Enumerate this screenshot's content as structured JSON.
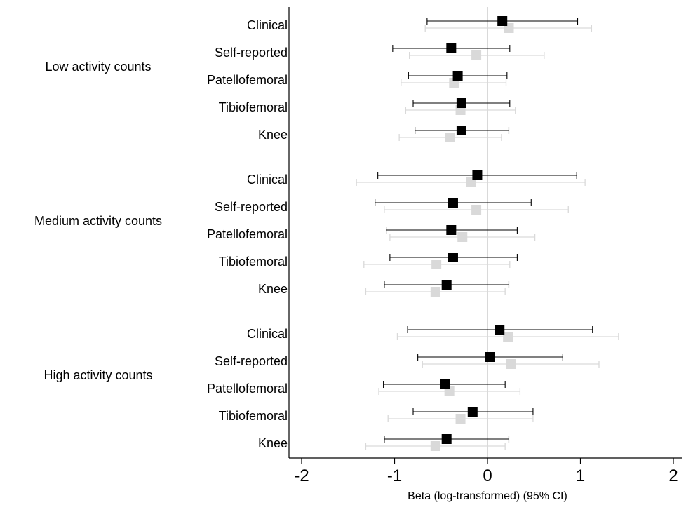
{
  "chart_data": {
    "type": "forest",
    "xlabel": "Beta (log-transformed) (95% CI)",
    "xlim": [
      -2.12,
      2.12
    ],
    "xticks": [
      -2,
      -1,
      0,
      1,
      2
    ],
    "xtick_labels": [
      "-2",
      "-1",
      "0",
      "1",
      "2"
    ],
    "reference_line": 0,
    "grid": false,
    "colors": {
      "primary": "#000000",
      "secondary": "#d9d9d9",
      "reference": "#d9d9d9"
    },
    "groups": [
      {
        "label": "Low activity counts",
        "rows": [
          {
            "label": "Clinical",
            "primary": {
              "est": 0.16,
              "lo": -0.65,
              "hi": 0.97
            },
            "secondary": {
              "est": 0.23,
              "lo": -0.67,
              "hi": 1.12
            }
          },
          {
            "label": "Self-reported",
            "primary": {
              "est": -0.39,
              "lo": -1.02,
              "hi": 0.24
            },
            "secondary": {
              "est": -0.12,
              "lo": -0.84,
              "hi": 0.61
            }
          },
          {
            "label": "Patellofemoral",
            "primary": {
              "est": -0.32,
              "lo": -0.85,
              "hi": 0.21
            },
            "secondary": {
              "est": -0.36,
              "lo": -0.93,
              "hi": 0.2
            }
          },
          {
            "label": "Tibiofemoral",
            "primary": {
              "est": -0.28,
              "lo": -0.8,
              "hi": 0.24
            },
            "secondary": {
              "est": -0.29,
              "lo": -0.88,
              "hi": 0.3
            }
          },
          {
            "label": "Knee",
            "primary": {
              "est": -0.28,
              "lo": -0.78,
              "hi": 0.23
            },
            "secondary": {
              "est": -0.4,
              "lo": -0.95,
              "hi": 0.15
            }
          }
        ]
      },
      {
        "label": "Medium activity counts",
        "rows": [
          {
            "label": "Clinical",
            "primary": {
              "est": -0.11,
              "lo": -1.18,
              "hi": 0.96
            },
            "secondary": {
              "est": -0.18,
              "lo": -1.41,
              "hi": 1.05
            }
          },
          {
            "label": "Self-reported",
            "primary": {
              "est": -0.37,
              "lo": -1.21,
              "hi": 0.47
            },
            "secondary": {
              "est": -0.12,
              "lo": -1.11,
              "hi": 0.87
            }
          },
          {
            "label": "Patellofemoral",
            "primary": {
              "est": -0.39,
              "lo": -1.09,
              "hi": 0.32
            },
            "secondary": {
              "est": -0.27,
              "lo": -1.05,
              "hi": 0.51
            }
          },
          {
            "label": "Tibiofemoral",
            "primary": {
              "est": -0.37,
              "lo": -1.05,
              "hi": 0.32
            },
            "secondary": {
              "est": -0.55,
              "lo": -1.33,
              "hi": 0.24
            }
          },
          {
            "label": "Knee",
            "primary": {
              "est": -0.44,
              "lo": -1.11,
              "hi": 0.23
            },
            "secondary": {
              "est": -0.56,
              "lo": -1.31,
              "hi": 0.19
            }
          }
        ]
      },
      {
        "label": "High activity counts",
        "rows": [
          {
            "label": "Clinical",
            "primary": {
              "est": 0.13,
              "lo": -0.86,
              "hi": 1.13
            },
            "secondary": {
              "est": 0.22,
              "lo": -0.97,
              "hi": 1.41
            }
          },
          {
            "label": "Self-reported",
            "primary": {
              "est": 0.03,
              "lo": -0.75,
              "hi": 0.81
            },
            "secondary": {
              "est": 0.25,
              "lo": -0.7,
              "hi": 1.2
            }
          },
          {
            "label": "Patellofemoral",
            "primary": {
              "est": -0.46,
              "lo": -1.12,
              "hi": 0.19
            },
            "secondary": {
              "est": -0.41,
              "lo": -1.17,
              "hi": 0.35
            }
          },
          {
            "label": "Tibiofemoral",
            "primary": {
              "est": -0.16,
              "lo": -0.8,
              "hi": 0.49
            },
            "secondary": {
              "est": -0.29,
              "lo": -1.07,
              "hi": 0.49
            }
          },
          {
            "label": "Knee",
            "primary": {
              "est": -0.44,
              "lo": -1.11,
              "hi": 0.23
            },
            "secondary": {
              "est": -0.56,
              "lo": -1.31,
              "hi": 0.19
            }
          }
        ]
      }
    ]
  }
}
